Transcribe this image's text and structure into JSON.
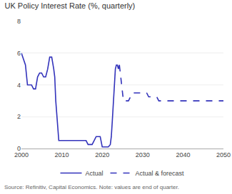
{
  "chart_data": {
    "type": "line",
    "title": "UK Policy Interest Rate (%, quarterly)",
    "annotations": [
      "Source: Refinitiv, Capital Economics. Note: values are end of quarter."
    ],
    "xlim": [
      2000,
      2050
    ],
    "xticks": [
      2000,
      2010,
      2020,
      2030,
      2040,
      2050
    ],
    "ylim": [
      0,
      8
    ],
    "yticks": [
      0,
      2,
      4,
      6,
      8
    ],
    "grid": true,
    "legend": "bottom",
    "series": [
      {
        "name": "Actual",
        "color": "#3333bb",
        "line_style": "solid",
        "x": [
          2000,
          2001,
          2001.5,
          2002,
          2002.5,
          2003,
          2003.5,
          2004,
          2004.5,
          2005,
          2005.5,
          2006,
          2006.5,
          2007,
          2007.5,
          2008,
          2008.25,
          2008.5,
          2008.75,
          2009,
          2009.25,
          2009.5,
          2009.75,
          2010,
          2010.5,
          2011,
          2011.5,
          2012,
          2012.5,
          2013,
          2013.5,
          2014,
          2014.5,
          2015,
          2015.5,
          2016,
          2016.5,
          2017,
          2017.5,
          2018,
          2018.5,
          2019,
          2019.5,
          2020,
          2020.25,
          2020.5,
          2020.75,
          2021,
          2021.5,
          2022,
          2022.25,
          2022.5,
          2022.75,
          2023,
          2023.25,
          2023.5,
          2023.75,
          2024,
          2024.25
        ],
        "values": [
          6.0,
          5.25,
          4.0,
          4.0,
          4.0,
          3.75,
          3.75,
          4.5,
          4.75,
          4.75,
          4.5,
          4.5,
          5.0,
          5.75,
          5.75,
          5.0,
          4.5,
          3.0,
          2.0,
          1.0,
          0.5,
          0.5,
          0.5,
          0.5,
          0.5,
          0.5,
          0.5,
          0.5,
          0.5,
          0.5,
          0.5,
          0.5,
          0.5,
          0.5,
          0.5,
          0.5,
          0.25,
          0.25,
          0.25,
          0.5,
          0.75,
          0.75,
          0.75,
          0.1,
          0.1,
          0.1,
          0.1,
          0.1,
          0.1,
          0.25,
          0.75,
          1.75,
          3.0,
          4.0,
          5.0,
          5.25,
          5.25,
          5.0,
          5.25
        ]
      },
      {
        "name": "Actual & forecast",
        "color": "#3333bb",
        "line_style": "dashed",
        "x": [
          2024.25,
          2024.5,
          2024.75,
          2025,
          2025.25,
          2025.5,
          2025.75,
          2026,
          2026.5,
          2027,
          2027.5,
          2028,
          2028.5,
          2029,
          2029.5,
          2030,
          2030.5,
          2031,
          2031.5,
          2032,
          2032.5,
          2033,
          2033.5,
          2034,
          2034.5,
          2035,
          2035.5,
          2036,
          2036.5,
          2037,
          2037.5,
          2038,
          2038.5,
          2039,
          2039.5,
          2040,
          2040.5,
          2041,
          2041.5,
          2042,
          2042.5,
          2043,
          2043.5,
          2044,
          2044.5,
          2045,
          2045.5,
          2046,
          2046.5,
          2047,
          2047.5,
          2048,
          2048.5,
          2049,
          2049.5,
          2050
        ],
        "values": [
          5.25,
          4.75,
          4.25,
          3.5,
          3.0,
          3.0,
          3.0,
          3.0,
          3.0,
          3.25,
          3.5,
          3.5,
          3.5,
          3.5,
          3.5,
          3.5,
          3.5,
          3.5,
          3.25,
          3.25,
          3.25,
          3.25,
          3.25,
          3.0,
          3.0,
          3.0,
          3.0,
          3.0,
          3.0,
          3.0,
          3.0,
          3.0,
          3.0,
          3.0,
          3.0,
          3.0,
          3.0,
          3.0,
          3.0,
          3.0,
          3.0,
          3.0,
          3.0,
          3.0,
          3.0,
          3.0,
          3.0,
          3.0,
          3.0,
          3.0,
          3.0,
          3.0,
          3.0,
          3.0,
          3.0,
          3.0
        ]
      }
    ]
  }
}
